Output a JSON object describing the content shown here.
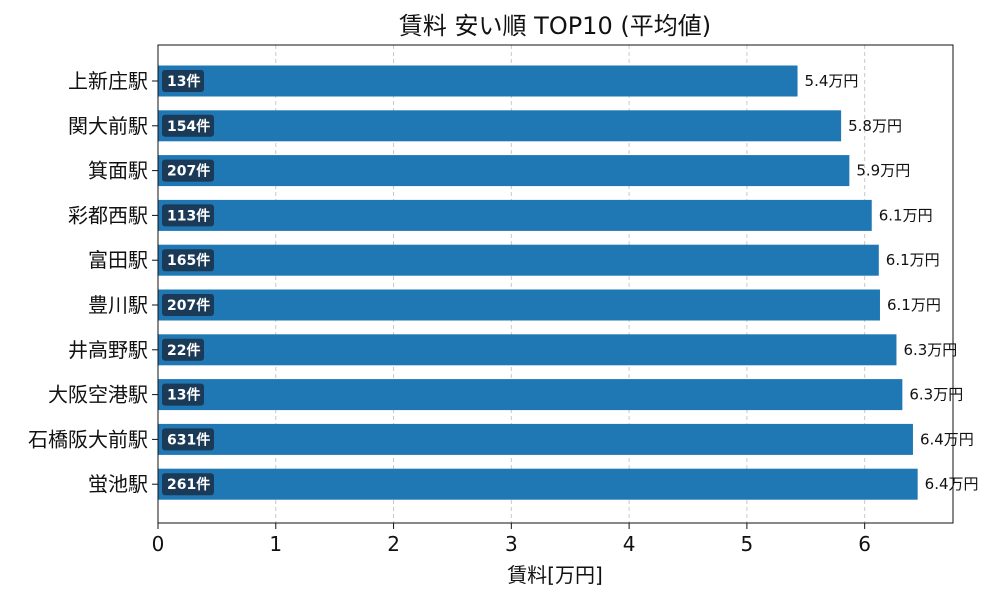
{
  "chart_data": {
    "type": "bar",
    "orientation": "horizontal",
    "title": "賃料 安い順 TOP10 (平均値)",
    "xlabel": "賃料[万円]",
    "ylabel": "",
    "xlim": [
      0,
      6.75
    ],
    "xticks": [
      0,
      1,
      2,
      3,
      4,
      5,
      6
    ],
    "grid": "x-dashed",
    "categories": [
      "上新庄駅",
      "関大前駅",
      "箕面駅",
      "彩都西駅",
      "富田駅",
      "豊川駅",
      "井高野駅",
      "大阪空港駅",
      "石橋阪大前駅",
      "蛍池駅"
    ],
    "values": [
      5.43,
      5.8,
      5.87,
      6.06,
      6.12,
      6.13,
      6.27,
      6.32,
      6.41,
      6.45
    ],
    "value_labels": [
      "5.4万円",
      "5.8万円",
      "5.9万円",
      "6.1万円",
      "6.1万円",
      "6.1万円",
      "6.3万円",
      "6.3万円",
      "6.4万円",
      "6.4万円"
    ],
    "count_labels": [
      "13件",
      "154件",
      "207件",
      "113件",
      "165件",
      "207件",
      "22件",
      "13件",
      "631件",
      "261件"
    ],
    "colors": {
      "bar": "#1f77b4",
      "badge": "#1a3a57",
      "grid": "#c8c8c8"
    }
  }
}
